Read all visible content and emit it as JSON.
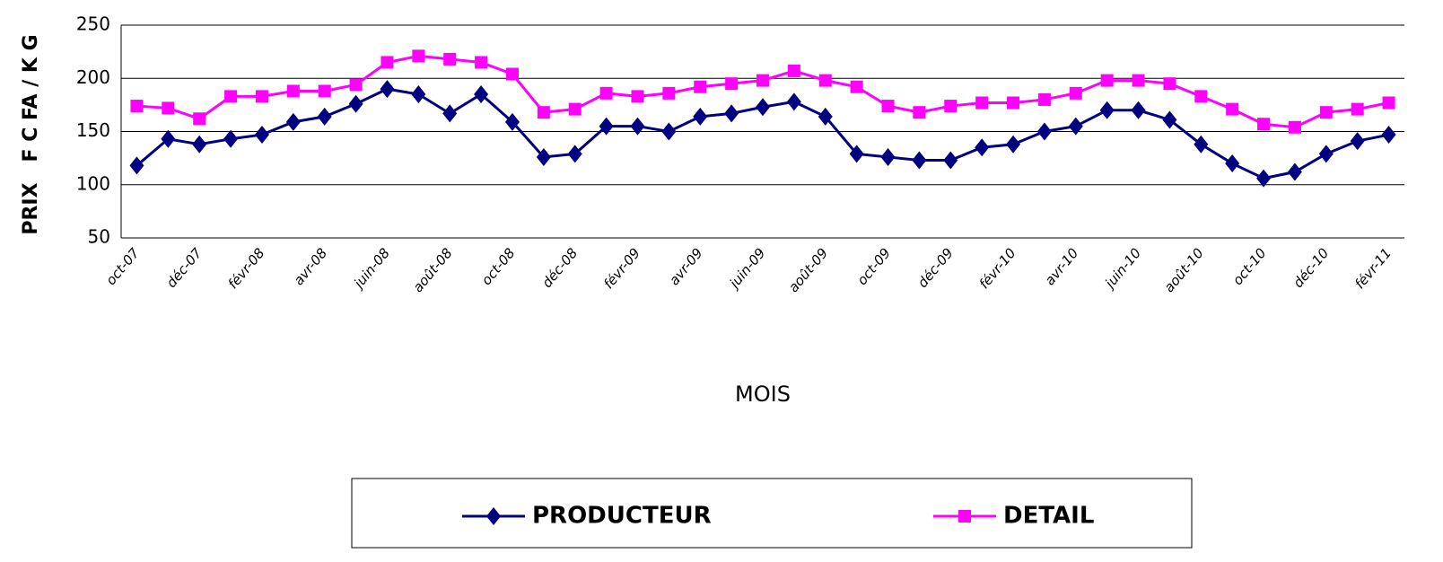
{
  "chart_data": {
    "type": "line",
    "y_label": "PRIX   F C FA / K G",
    "x_label": "MOIS",
    "categories": [
      "oct-07",
      null,
      "déc-07",
      null,
      "févr-08",
      null,
      "avr-08",
      null,
      "juin-08",
      null,
      "août-08",
      null,
      "oct-08",
      null,
      "déc-08",
      null,
      "févr-09",
      null,
      "avr-09",
      null,
      "juin-09",
      null,
      "août-09",
      null,
      "oct-09",
      null,
      "déc-09",
      null,
      "févr-10",
      null,
      "avr-10",
      null,
      "juin-10",
      null,
      "août-10",
      null,
      "oct-10",
      null,
      "déc-10",
      null,
      "févr-11"
    ],
    "series": [
      {
        "name": "PRODUCTEUR",
        "color": "#000080",
        "marker": "diamond",
        "values": [
          118,
          143,
          138,
          143,
          147,
          159,
          164,
          176,
          190,
          185,
          167,
          185,
          159,
          126,
          129,
          155,
          155,
          150,
          164,
          167,
          173,
          178,
          164,
          129,
          126,
          123,
          123,
          135,
          138,
          150,
          155,
          170,
          170,
          161,
          138,
          120,
          106,
          112,
          129,
          141,
          147
        ]
      },
      {
        "name": "DETAIL",
        "color": "#ff00ff",
        "marker": "square",
        "values": [
          174,
          172,
          162,
          183,
          183,
          188,
          188,
          194,
          215,
          221,
          218,
          215,
          204,
          168,
          171,
          186,
          183,
          186,
          192,
          195,
          198,
          207,
          198,
          192,
          174,
          168,
          174,
          177,
          177,
          180,
          186,
          198,
          198,
          195,
          183,
          171,
          157,
          154,
          168,
          171,
          177
        ]
      }
    ],
    "ylim": [
      50,
      250
    ],
    "yticks": [
      50,
      100,
      150,
      200,
      250
    ],
    "grid": true,
    "legend": "bottom"
  }
}
